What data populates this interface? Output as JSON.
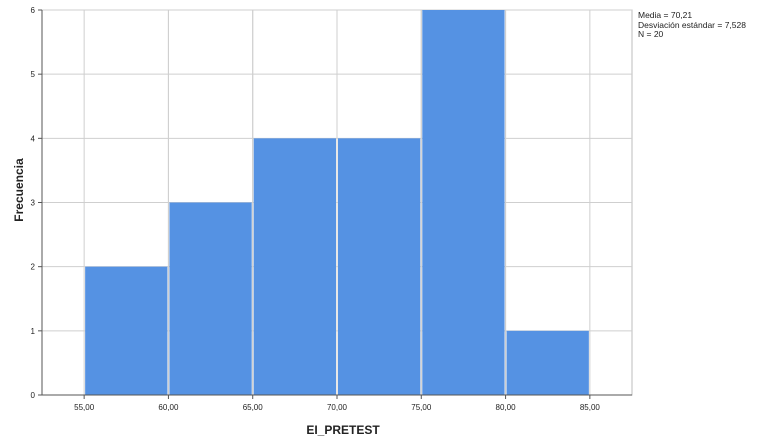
{
  "chart_data": {
    "type": "bar",
    "subtype": "histogram",
    "bins": [
      {
        "from": 55,
        "to": 60,
        "count": 2
      },
      {
        "from": 60,
        "to": 65,
        "count": 3
      },
      {
        "from": 65,
        "to": 70,
        "count": 4
      },
      {
        "from": 70,
        "to": 75,
        "count": 4
      },
      {
        "from": 75,
        "to": 80,
        "count": 6
      },
      {
        "from": 80,
        "to": 85,
        "count": 1
      }
    ],
    "x_ticks": [
      "55,00",
      "60,00",
      "65,00",
      "70,00",
      "75,00",
      "80,00",
      "85,00"
    ],
    "y_ticks": [
      "0",
      "1",
      "2",
      "3",
      "4",
      "5",
      "6"
    ],
    "xlim": [
      52.5,
      87.5
    ],
    "ylim": [
      0,
      6
    ],
    "xlabel": "EI_PRETEST",
    "ylabel": "Frecuencia",
    "grid": true,
    "bar_color": "#5592e3",
    "stats": {
      "mean": "Media = 70,21",
      "std": "Desviación estándar = 7,528",
      "n": "N = 20"
    }
  }
}
